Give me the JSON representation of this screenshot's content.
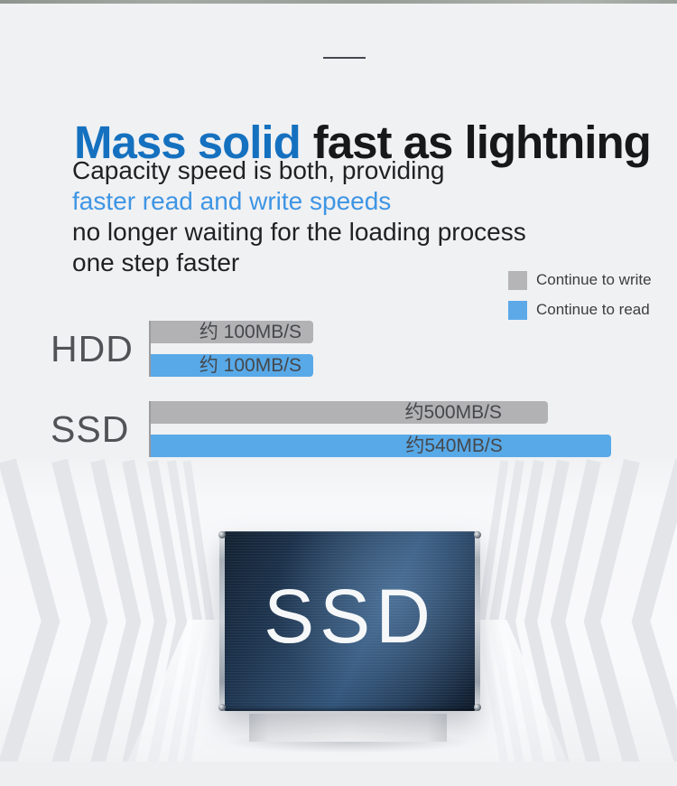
{
  "page": {
    "background": "#f0f1f3",
    "accent_blue": "#1571bf",
    "light_blue": "#3e95e4"
  },
  "header": {
    "title_highlight": "Mass solid",
    "title_rest": "fast as lightning",
    "subtitle_lines": [
      "Capacity speed is both, providing",
      "faster read and write speeds",
      "no longer waiting for the loading process",
      "one step faster"
    ]
  },
  "legend": [
    {
      "label": "Continue to write",
      "color": "#b5b5b7"
    },
    {
      "label": "Continue to read",
      "color": "#5da9e8"
    }
  ],
  "chart_data": {
    "type": "bar",
    "orientation": "horizontal",
    "title": "",
    "categories": [
      "HDD",
      "SSD"
    ],
    "series": [
      {
        "name": "Continue to write",
        "color": "#b2b2b4",
        "values": [
          100,
          500
        ],
        "value_labels": [
          "约 100MB/S",
          "约500MB/S"
        ],
        "bar_length_pct": [
          34.3,
          83.8
        ]
      },
      {
        "name": "Continue to read",
        "color": "#58a9e8",
        "values": [
          100,
          540
        ],
        "value_labels": [
          "约 100MB/S",
          "约540MB/S"
        ],
        "bar_length_pct": [
          34.3,
          97.1
        ]
      }
    ],
    "unit": "MB/S",
    "approx_prefix": "约",
    "legend_position": "top-right",
    "axes": "none — value labels printed on bars",
    "grid": false
  },
  "product": {
    "name": "SSD"
  }
}
